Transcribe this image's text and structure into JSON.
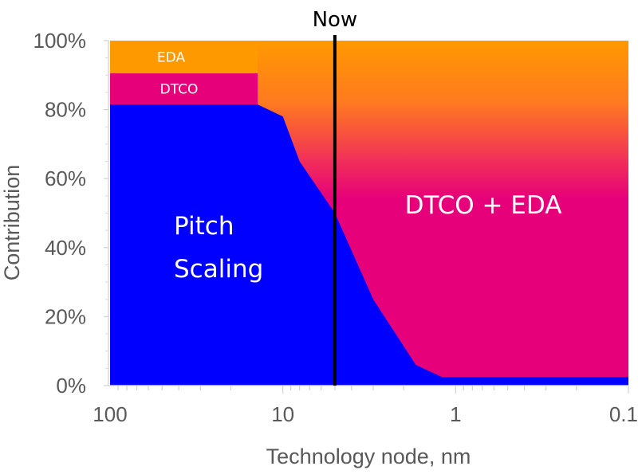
{
  "chart_data": {
    "type": "area",
    "title": "",
    "xlabel": "Technology node, nm",
    "ylabel": "Contribution",
    "x_scale": "log",
    "x_reversed": true,
    "xlim": [
      100,
      0.1
    ],
    "ylim": [
      0,
      100
    ],
    "x_ticks": [
      {
        "value": 100,
        "label": "100"
      },
      {
        "value": 10,
        "label": "10"
      },
      {
        "value": 1,
        "label": "1"
      },
      {
        "value": 0.1,
        "label": "0.1"
      }
    ],
    "y_ticks": [
      {
        "value": 0,
        "label": "0%"
      },
      {
        "value": 20,
        "label": "20%"
      },
      {
        "value": 40,
        "label": "40%"
      },
      {
        "value": 60,
        "label": "60%"
      },
      {
        "value": 80,
        "label": "80%"
      },
      {
        "value": 100,
        "label": "100%"
      }
    ],
    "series": [
      {
        "name": "Pitch Scaling",
        "color": "#0000ff",
        "x": [
          100,
          14,
          10,
          8,
          5,
          3,
          1.7,
          1.2,
          0.1
        ],
        "y": [
          81.5,
          81.5,
          78,
          65,
          50,
          25,
          6,
          2.5,
          2.5
        ]
      }
    ],
    "bands": [
      {
        "name": "DTCO",
        "from": 81.5,
        "to": 90.5,
        "x_from": 100,
        "x_to": 14,
        "color": "#e6007a"
      },
      {
        "name": "EDA",
        "from": 90.5,
        "to": 100,
        "x_from": 100,
        "x_to": 14,
        "color": "#ff9900"
      }
    ],
    "upper_region": {
      "name": "DTCO + EDA",
      "color_top": "#ff9900",
      "color_bottom": "#e6007a"
    },
    "annotations": [
      {
        "text": "Now",
        "x": 5
      }
    ],
    "region_labels": {
      "pitch_line1": "Pitch",
      "pitch_line2": "Scaling",
      "dtco_eda": "DTCO + EDA",
      "eda": "EDA",
      "dtco": "DTCO"
    },
    "grid": false,
    "legend": "none"
  }
}
